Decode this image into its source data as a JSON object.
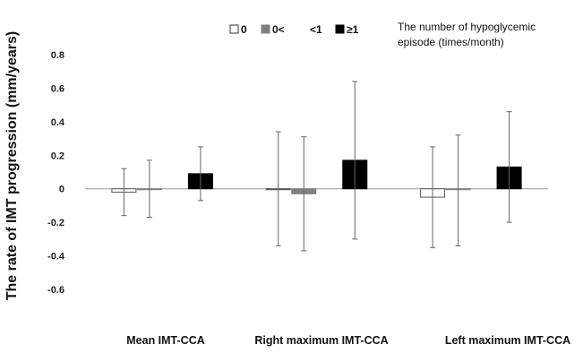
{
  "chart_data": {
    "type": "bar",
    "ylabel": "The rate of IMT progression (mm/years)",
    "ylim": [
      -0.6,
      0.8
    ],
    "yticks": [
      "0.8",
      "0.6",
      "0.4",
      "0.2",
      "0",
      "-0.2",
      "-0.4",
      "-0.6"
    ],
    "ytick_values": [
      0.8,
      0.6,
      0.4,
      0.2,
      0,
      -0.2,
      -0.4,
      -0.6
    ],
    "categories": [
      "Mean IMT-CCA",
      "Right maximum IMT-CCA",
      "Left maximum IMT-CCA"
    ],
    "legend_title": "The number of hypoglycemic episode (times/month)",
    "legend_title_lines": [
      "The number of hypoglycemic",
      "episode (times/month)"
    ],
    "legend_position": "top",
    "grid": false,
    "series": [
      {
        "name": "0",
        "color": "#ffffff",
        "stroke": "#555555",
        "values": [
          -0.02,
          0.0,
          -0.05
        ],
        "err_low": [
          -0.16,
          -0.34,
          -0.35
        ],
        "err_high": [
          0.12,
          0.34,
          0.25
        ]
      },
      {
        "name": "0<",
        "color": "#808080",
        "stroke": "#808080",
        "values": [
          0.0,
          -0.03,
          -0.005
        ],
        "err_low": [
          -0.17,
          -0.37,
          -0.34
        ],
        "err_high": [
          0.17,
          0.31,
          0.32
        ]
      },
      {
        "name": "<1",
        "color": "#ffffff",
        "stroke": "#ffffff",
        "values": [
          null,
          null,
          null
        ],
        "err_low": [
          null,
          null,
          null
        ],
        "err_high": [
          null,
          null,
          null
        ]
      },
      {
        "name": "≥1",
        "color": "#000000",
        "stroke": "#000000",
        "values": [
          0.09,
          0.17,
          0.13
        ],
        "err_low": [
          -0.07,
          -0.3,
          -0.2
        ],
        "err_high": [
          0.25,
          0.64,
          0.46
        ]
      }
    ]
  }
}
